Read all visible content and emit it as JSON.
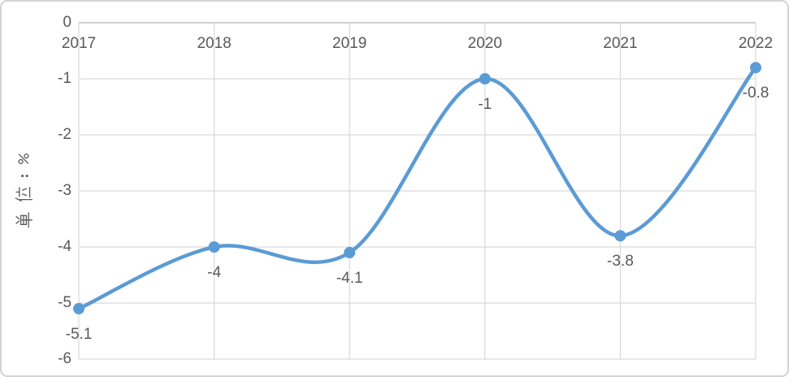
{
  "chart_data": {
    "type": "line",
    "title": "",
    "categories": [
      "2017",
      "2018",
      "2019",
      "2020",
      "2021",
      "2022"
    ],
    "values": [
      -5.1,
      -4,
      -4.1,
      -1,
      -3.8,
      -0.8
    ],
    "data_labels": [
      "-5.1",
      "-4",
      "-4.1",
      "-1",
      "-3.8",
      "-0.8"
    ],
    "xlabel": "",
    "ylabel": "单位：%",
    "ylim": [
      -6,
      0
    ],
    "y_ticks": [
      "0",
      "-1",
      "-2",
      "-3",
      "-4",
      "-5",
      "-6"
    ],
    "x_axis_position": "top",
    "grid": "both",
    "legend": "none",
    "smooth": true,
    "marker": "circle",
    "colors": {
      "line": "#5B9BD5",
      "marker": "#5B9BD5",
      "gridline": "#D9D9D9",
      "axis_line": "#C0C0C0",
      "text": "#595959",
      "frame_border": "#D3D3D3",
      "background": "#FFFFFF"
    }
  }
}
